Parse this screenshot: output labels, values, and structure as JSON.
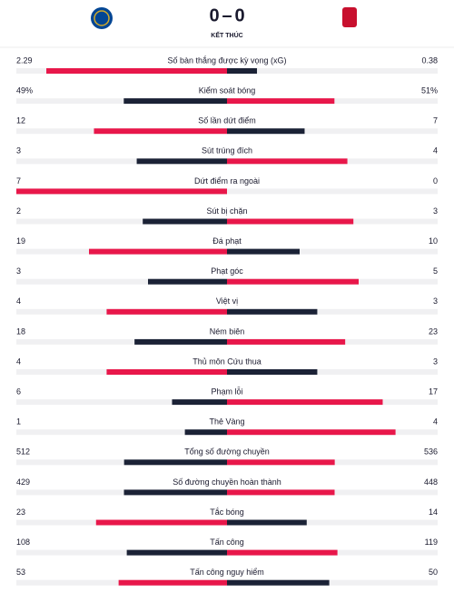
{
  "header": {
    "home_score": "0",
    "away_score": "0",
    "status": "KẾT THÚC"
  },
  "rows": [
    {
      "label": "Số bàn thắng được kỳ vọng (xG)",
      "home": 2.29,
      "away": 0.38
    },
    {
      "label": "Kiểm soát bóng",
      "home": 49,
      "away": 51,
      "home_label": "49%",
      "away_label": "51%"
    },
    {
      "label": "Số lần dứt điểm",
      "home": 12,
      "away": 7
    },
    {
      "label": "Sút trúng đích",
      "home": 3,
      "away": 4
    },
    {
      "label": "Dứt điểm ra ngoài",
      "home": 7,
      "away": 0
    },
    {
      "label": "Sút bị chặn",
      "home": 2,
      "away": 3
    },
    {
      "label": "Đá phạt",
      "home": 19,
      "away": 10
    },
    {
      "label": "Phạt góc",
      "home": 3,
      "away": 5
    },
    {
      "label": "Việt vị",
      "home": 4,
      "away": 3
    },
    {
      "label": "Ném biên",
      "home": 18,
      "away": 23
    },
    {
      "label": "Thủ môn Cứu thua",
      "home": 4,
      "away": 3
    },
    {
      "label": "Phạm lỗi",
      "home": 6,
      "away": 17
    },
    {
      "label": "Thẻ Vàng",
      "home": 1,
      "away": 4
    },
    {
      "label": "Tổng số đường chuyền",
      "home": 512,
      "away": 536
    },
    {
      "label": "Số đường chuyền hoàn thành",
      "home": 429,
      "away": 448
    },
    {
      "label": "Tắc bóng",
      "home": 23,
      "away": 14
    },
    {
      "label": "Tấn công",
      "home": 108,
      "away": 119
    },
    {
      "label": "Tấn công nguy hiểm",
      "home": 53,
      "away": 50
    }
  ]
}
